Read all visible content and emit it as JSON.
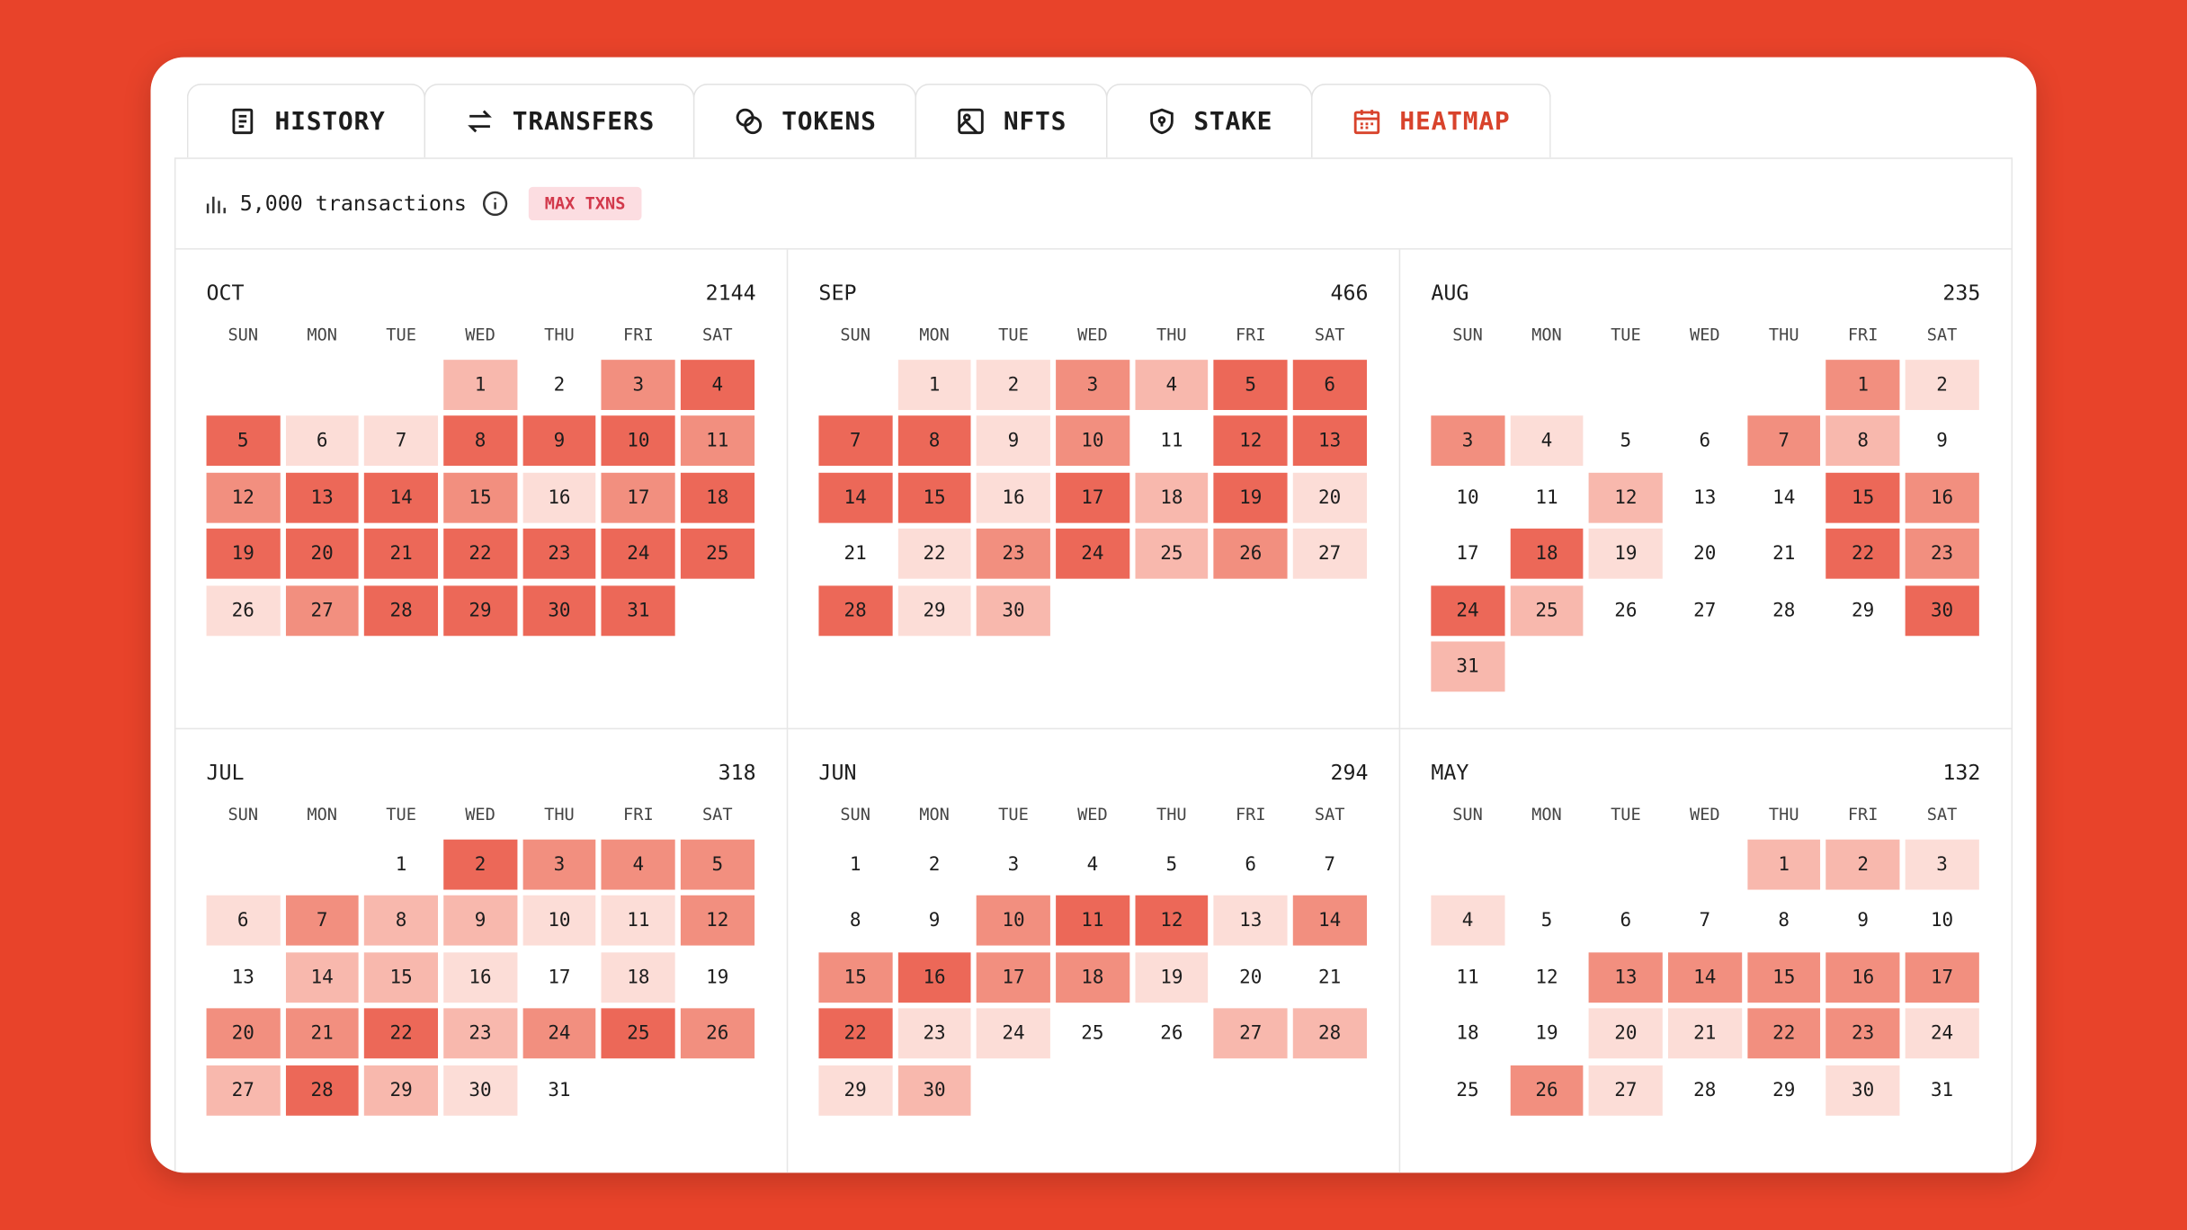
{
  "tabs": [
    "HISTORY",
    "TRANSFERS",
    "TOKENS",
    "NFTS",
    "STAKE",
    "HEATMAP"
  ],
  "active_tab": 5,
  "summary": {
    "text": "5,000 transactions",
    "badge": "MAX TXNS"
  },
  "weekdays": [
    "SUN",
    "MON",
    "TUE",
    "WED",
    "THU",
    "FRI",
    "SAT"
  ],
  "palette": [
    "#ffffff",
    "#fcddd7",
    "#f8b8ad",
    "#f28f7f",
    "#ec6858"
  ],
  "months": [
    {
      "name": "OCT",
      "total": 2144,
      "days": [
        null,
        null,
        null,
        "1",
        "2",
        "3",
        "4",
        "5",
        "6",
        "7",
        "8",
        "9",
        "10",
        "11",
        "12",
        "13",
        "14",
        "15",
        "16",
        "17",
        "18",
        "19",
        "20",
        "21",
        "22",
        "23",
        "24",
        "25",
        "26",
        "27",
        "28",
        "29",
        "30",
        "31"
      ],
      "levels": [
        null,
        null,
        null,
        2,
        0,
        3,
        4,
        4,
        1,
        1,
        4,
        4,
        4,
        3,
        3,
        4,
        4,
        3,
        1,
        3,
        4,
        4,
        4,
        4,
        4,
        4,
        4,
        4,
        1,
        3,
        4,
        4,
        4,
        4
      ]
    },
    {
      "name": "SEP",
      "total": 466,
      "days": [
        null,
        "1",
        "2",
        "3",
        "4",
        "5",
        "6",
        "7",
        "8",
        "9",
        "10",
        "11",
        "12",
        "13",
        "14",
        "15",
        "16",
        "17",
        "18",
        "19",
        "20",
        "21",
        "22",
        "23",
        "24",
        "25",
        "26",
        "27",
        "28",
        "29",
        "30"
      ],
      "levels": [
        null,
        1,
        1,
        3,
        2,
        4,
        4,
        4,
        4,
        1,
        3,
        0,
        4,
        4,
        4,
        4,
        1,
        4,
        2,
        4,
        1,
        0,
        1,
        3,
        4,
        2,
        3,
        1,
        4,
        1,
        2
      ]
    },
    {
      "name": "AUG",
      "total": 235,
      "days": [
        null,
        null,
        null,
        null,
        null,
        "1",
        "2",
        "3",
        "4",
        "5",
        "6",
        "7",
        "8",
        "9",
        "10",
        "11",
        "12",
        "13",
        "14",
        "15",
        "16",
        "17",
        "18",
        "19",
        "20",
        "21",
        "22",
        "23",
        "24",
        "25",
        "26",
        "27",
        "28",
        "29",
        "30",
        "31"
      ],
      "levels": [
        null,
        null,
        null,
        null,
        null,
        3,
        1,
        3,
        1,
        0,
        0,
        3,
        2,
        0,
        0,
        0,
        2,
        0,
        0,
        4,
        3,
        0,
        4,
        1,
        0,
        0,
        4,
        3,
        4,
        2,
        0,
        0,
        0,
        0,
        4,
        2
      ]
    },
    {
      "name": "JUL",
      "total": 318,
      "days": [
        null,
        null,
        "1",
        "2",
        "3",
        "4",
        "5",
        "6",
        "7",
        "8",
        "9",
        "10",
        "11",
        "12",
        "13",
        "14",
        "15",
        "16",
        "17",
        "18",
        "19",
        "20",
        "21",
        "22",
        "23",
        "24",
        "25",
        "26",
        "27",
        "28",
        "29",
        "30",
        "31"
      ],
      "levels": [
        null,
        null,
        0,
        4,
        3,
        3,
        3,
        1,
        3,
        2,
        2,
        1,
        1,
        3,
        0,
        2,
        2,
        1,
        0,
        1,
        0,
        3,
        3,
        4,
        2,
        3,
        4,
        3,
        2,
        4,
        2,
        1,
        0
      ]
    },
    {
      "name": "JUN",
      "total": 294,
      "days": [
        "1",
        "2",
        "3",
        "4",
        "5",
        "6",
        "7",
        "8",
        "9",
        "10",
        "11",
        "12",
        "13",
        "14",
        "15",
        "16",
        "17",
        "18",
        "19",
        "20",
        "21",
        "22",
        "23",
        "24",
        "25",
        "26",
        "27",
        "28",
        "29",
        "30"
      ],
      "levels": [
        0,
        0,
        0,
        0,
        0,
        0,
        0,
        0,
        0,
        3,
        4,
        4,
        1,
        3,
        3,
        4,
        3,
        3,
        1,
        0,
        0,
        4,
        1,
        1,
        0,
        0,
        2,
        2,
        1,
        2
      ]
    },
    {
      "name": "MAY",
      "total": 132,
      "days": [
        null,
        null,
        null,
        null,
        "1",
        "2",
        "3",
        "4",
        "5",
        "6",
        "7",
        "8",
        "9",
        "10",
        "11",
        "12",
        "13",
        "14",
        "15",
        "16",
        "17",
        "18",
        "19",
        "20",
        "21",
        "22",
        "23",
        "24",
        "25",
        "26",
        "27",
        "28",
        "29",
        "30",
        "31"
      ],
      "levels": [
        null,
        null,
        null,
        null,
        2,
        2,
        1,
        1,
        0,
        0,
        0,
        0,
        0,
        0,
        0,
        0,
        3,
        3,
        3,
        3,
        3,
        0,
        0,
        1,
        1,
        3,
        3,
        1,
        0,
        3,
        1,
        0,
        0,
        1,
        0
      ]
    }
  ]
}
